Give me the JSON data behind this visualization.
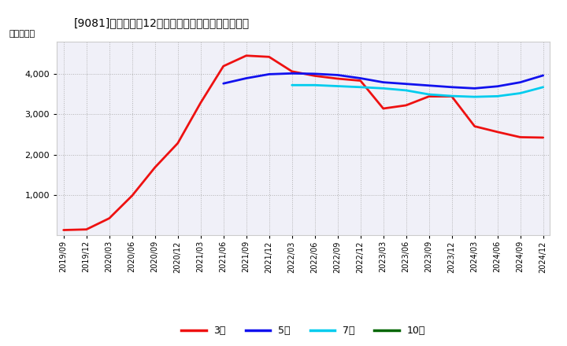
{
  "title": "[9081]　経常利益12か月移動合計の標準偏差の推移",
  "ylabel": "（百万円）",
  "background_color": "#ffffff",
  "plot_background": "#f0f0f8",
  "grid_color": "#aaaaaa",
  "ylim": [
    0,
    4800
  ],
  "yticks": [
    1000,
    2000,
    3000,
    4000
  ],
  "xtick_labels": [
    "2019/09",
    "2019/12",
    "2020/03",
    "2020/06",
    "2020/09",
    "2020/12",
    "2021/03",
    "2021/06",
    "2021/09",
    "2021/12",
    "2022/03",
    "2022/06",
    "2022/09",
    "2022/12",
    "2023/03",
    "2023/06",
    "2023/09",
    "2023/12",
    "2024/03",
    "2024/06",
    "2024/09",
    "2024/12"
  ],
  "series": {
    "3year": {
      "color": "#ee1111",
      "label": "3年",
      "linewidth": 2.0,
      "data_y": [
        130,
        145,
        420,
        980,
        1680,
        2280,
        3280,
        4190,
        4450,
        4420,
        4060,
        3950,
        3880,
        3830,
        3140,
        3220,
        3440,
        3440,
        2700,
        2560,
        2430,
        2420
      ]
    },
    "5year": {
      "color": "#1111ee",
      "label": "5年",
      "linewidth": 2.0,
      "data_y": [
        null,
        null,
        null,
        null,
        null,
        null,
        null,
        3760,
        3890,
        3990,
        4010,
        4000,
        3970,
        3890,
        3790,
        3750,
        3710,
        3670,
        3640,
        3690,
        3790,
        3960
      ]
    },
    "7year": {
      "color": "#00ccee",
      "label": "7年",
      "linewidth": 2.0,
      "data_y": [
        null,
        null,
        null,
        null,
        null,
        null,
        null,
        null,
        null,
        null,
        3720,
        3720,
        3695,
        3670,
        3640,
        3590,
        3490,
        3450,
        3430,
        3445,
        3520,
        3670
      ]
    },
    "10year": {
      "color": "#006600",
      "label": "10年",
      "linewidth": 2.0,
      "data_y": []
    }
  },
  "legend_entries": [
    "3年",
    "5年",
    "7年",
    "10年"
  ],
  "legend_colors": [
    "#ee1111",
    "#1111ee",
    "#00ccee",
    "#006600"
  ]
}
